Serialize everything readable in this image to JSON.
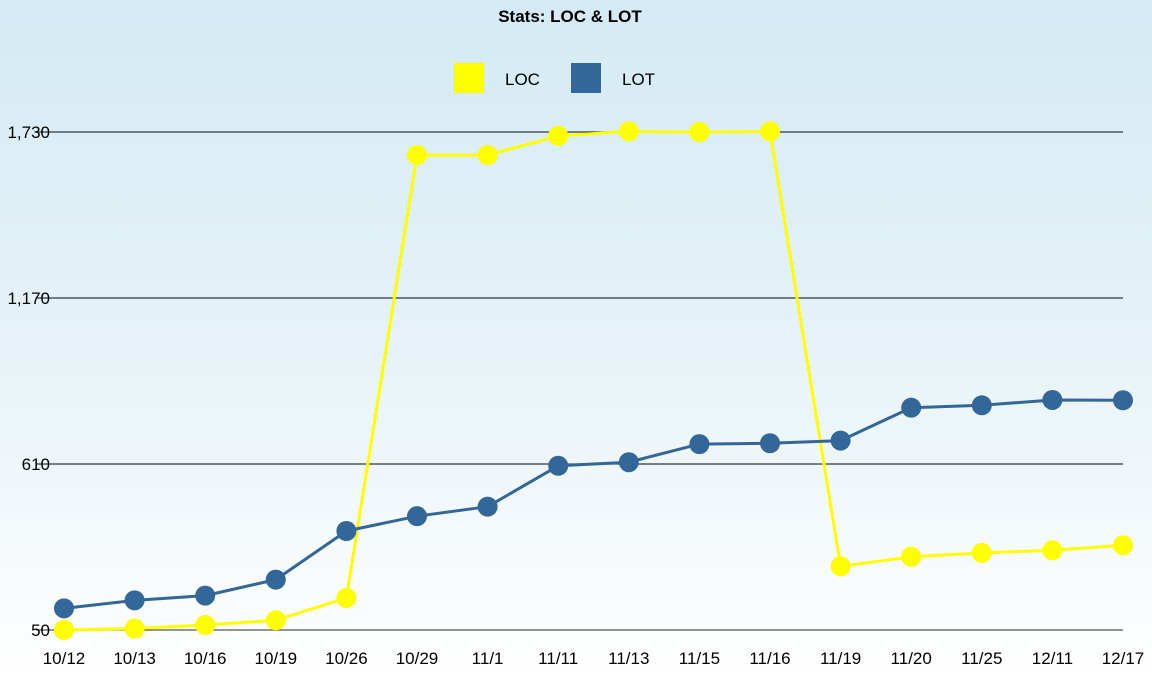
{
  "chart_data": {
    "type": "line",
    "title": "Stats: LOC & LOT",
    "categories": [
      "10/12",
      "10/13",
      "10/16",
      "10/19",
      "10/26",
      "10/29",
      "11/1",
      "11/11",
      "11/13",
      "11/15",
      "11/16",
      "11/19",
      "11/20",
      "11/25",
      "12/11",
      "12/17"
    ],
    "series": [
      {
        "name": "LOC",
        "color": "#ffff00",
        "values": [
          50,
          55,
          67,
          83,
          158,
          1652,
          1652,
          1717,
          1732,
          1730,
          1732,
          265,
          297,
          310,
          319,
          336
        ]
      },
      {
        "name": "LOT",
        "color": "#336699",
        "values": [
          123,
          150,
          166,
          220,
          384,
          434,
          466,
          604,
          616,
          677,
          680,
          689,
          800,
          808,
          826,
          825
        ]
      }
    ],
    "ylim": [
      50,
      1730
    ],
    "yticks": [
      50,
      610,
      1170,
      1730
    ],
    "ytick_labels": [
      "50",
      "610",
      "1,170",
      "1,730"
    ],
    "grid": true,
    "legend_position": "top-center"
  }
}
